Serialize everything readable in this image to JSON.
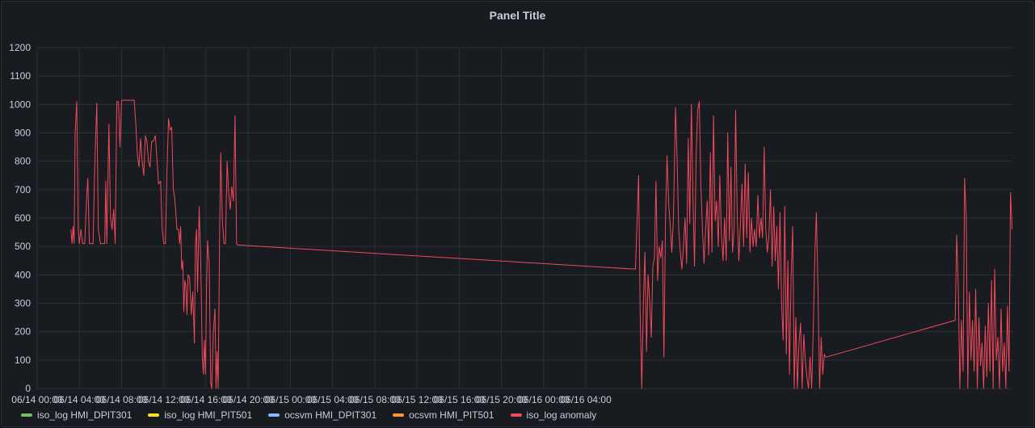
{
  "panel": {
    "title": "Panel Title"
  },
  "chart_data": {
    "type": "line",
    "title": "Panel Title",
    "ylim": [
      0,
      1200
    ],
    "y_ticks": [
      0,
      100,
      200,
      300,
      400,
      500,
      600,
      700,
      800,
      900,
      1000,
      1100,
      1200
    ],
    "x_ticks": [
      "06/14 00:00",
      "06/14 04:00",
      "06/14 08:00",
      "06/14 12:00",
      "06/14 16:00",
      "06/14 20:00",
      "06/15 00:00",
      "06/15 04:00",
      "06/15 08:00",
      "06/15 12:00",
      "06/15 16:00",
      "06/15 20:00",
      "06/16 00:00",
      "06/16 04:00"
    ],
    "x_unit": "hours since 06/14 00:00",
    "grid": true,
    "legend_position": "bottom-left",
    "series": [
      {
        "name": "iso_log HMI_DPIT301",
        "color": "#73bf69",
        "points": []
      },
      {
        "name": "iso_log HMI_PIT501",
        "color": "#fade2a",
        "points": []
      },
      {
        "name": "ocsvm HMI_DPIT301",
        "color": "#8ab8ff",
        "points": []
      },
      {
        "name": "ocsvm HMI_PIT501",
        "color": "#ff9830",
        "points": []
      },
      {
        "name": "iso_log anomaly",
        "color": "#f2495c",
        "points": [
          [
            3.2,
            560
          ],
          [
            3.3,
            510
          ],
          [
            3.4,
            570
          ],
          [
            3.5,
            510
          ],
          [
            3.6,
            900
          ],
          [
            3.75,
            1010
          ],
          [
            3.9,
            560
          ],
          [
            4.0,
            510
          ],
          [
            4.15,
            560
          ],
          [
            4.3,
            510
          ],
          [
            4.5,
            510
          ],
          [
            4.7,
            680
          ],
          [
            4.8,
            740
          ],
          [
            4.95,
            510
          ],
          [
            5.1,
            510
          ],
          [
            5.3,
            510
          ],
          [
            5.45,
            780
          ],
          [
            5.65,
            1005
          ],
          [
            5.8,
            560
          ],
          [
            6.0,
            510
          ],
          [
            6.2,
            510
          ],
          [
            6.4,
            510
          ],
          [
            6.5,
            730
          ],
          [
            6.6,
            510
          ],
          [
            6.8,
            930
          ],
          [
            6.95,
            600
          ],
          [
            7.1,
            560
          ],
          [
            7.25,
            630
          ],
          [
            7.4,
            510
          ],
          [
            7.55,
            1010
          ],
          [
            7.7,
            1010
          ],
          [
            7.85,
            850
          ],
          [
            8.0,
            1015
          ],
          [
            9.0,
            1015
          ],
          [
            9.2,
            1015
          ],
          [
            9.35,
            930
          ],
          [
            9.5,
            820
          ],
          [
            9.65,
            780
          ],
          [
            9.8,
            880
          ],
          [
            9.95,
            800
          ],
          [
            10.1,
            750
          ],
          [
            10.25,
            890
          ],
          [
            10.4,
            870
          ],
          [
            10.55,
            800
          ],
          [
            10.7,
            780
          ],
          [
            10.85,
            870
          ],
          [
            11.0,
            870
          ],
          [
            11.2,
            890
          ],
          [
            11.35,
            810
          ],
          [
            11.5,
            720
          ],
          [
            11.7,
            730
          ],
          [
            11.85,
            560
          ],
          [
            12.0,
            510
          ],
          [
            12.15,
            510
          ],
          [
            12.3,
            760
          ],
          [
            12.45,
            950
          ],
          [
            12.6,
            910
          ],
          [
            12.75,
            920
          ],
          [
            12.9,
            700
          ],
          [
            13.0,
            680
          ],
          [
            13.1,
            640
          ],
          [
            13.25,
            560
          ],
          [
            13.4,
            560
          ],
          [
            13.5,
            510
          ],
          [
            13.6,
            570
          ],
          [
            13.7,
            420
          ],
          [
            13.8,
            450
          ],
          [
            13.9,
            270
          ],
          [
            14.0,
            380
          ],
          [
            14.1,
            360
          ],
          [
            14.2,
            260
          ],
          [
            14.3,
            400
          ],
          [
            14.45,
            390
          ],
          [
            14.6,
            260
          ],
          [
            14.75,
            340
          ],
          [
            14.9,
            160
          ],
          [
            15.0,
            510
          ],
          [
            15.1,
            560
          ],
          [
            15.2,
            340
          ],
          [
            15.35,
            640
          ],
          [
            15.5,
            450
          ],
          [
            15.65,
            110
          ],
          [
            15.75,
            50
          ],
          [
            15.85,
            170
          ],
          [
            15.95,
            50
          ],
          [
            16.05,
            350
          ],
          [
            16.15,
            520
          ],
          [
            16.3,
            440
          ],
          [
            16.45,
            20
          ],
          [
            16.55,
            0
          ],
          [
            16.7,
            200
          ],
          [
            16.85,
            280
          ],
          [
            16.95,
            0
          ],
          [
            17.05,
            130
          ],
          [
            17.15,
            0
          ],
          [
            17.3,
            560
          ],
          [
            17.4,
            830
          ],
          [
            17.55,
            590
          ],
          [
            17.7,
            510
          ],
          [
            17.85,
            510
          ],
          [
            18.0,
            800
          ],
          [
            18.15,
            690
          ],
          [
            18.3,
            630
          ],
          [
            18.45,
            710
          ],
          [
            18.6,
            660
          ],
          [
            18.75,
            960
          ],
          [
            18.9,
            510
          ],
          [
            19.0,
            505
          ],
          [
            56.7,
            420
          ],
          [
            57.0,
            750
          ],
          [
            57.15,
            270
          ],
          [
            57.3,
            0
          ],
          [
            57.45,
            300
          ],
          [
            57.6,
            480
          ],
          [
            57.75,
            130
          ],
          [
            57.9,
            400
          ],
          [
            58.05,
            310
          ],
          [
            58.2,
            180
          ],
          [
            58.35,
            430
          ],
          [
            58.5,
            460
          ],
          [
            58.65,
            730
          ],
          [
            58.8,
            380
          ],
          [
            58.95,
            500
          ],
          [
            59.1,
            460
          ],
          [
            59.25,
            520
          ],
          [
            59.4,
            110
          ],
          [
            59.55,
            600
          ],
          [
            59.7,
            820
          ],
          [
            59.85,
            650
          ],
          [
            60.0,
            570
          ],
          [
            60.15,
            480
          ],
          [
            60.3,
            600
          ],
          [
            60.5,
            990
          ],
          [
            60.65,
            800
          ],
          [
            60.8,
            560
          ],
          [
            60.95,
            480
          ],
          [
            61.1,
            420
          ],
          [
            61.25,
            500
          ],
          [
            61.4,
            600
          ],
          [
            61.55,
            440
          ],
          [
            61.7,
            880
          ],
          [
            61.85,
            580
          ],
          [
            62.0,
            1000
          ],
          [
            62.15,
            680
          ],
          [
            62.3,
            430
          ],
          [
            62.45,
            820
          ],
          [
            62.6,
            980
          ],
          [
            62.75,
            1010
          ],
          [
            62.9,
            720
          ],
          [
            63.05,
            560
          ],
          [
            63.2,
            440
          ],
          [
            63.35,
            560
          ],
          [
            63.5,
            660
          ],
          [
            63.65,
            470
          ],
          [
            63.8,
            830
          ],
          [
            63.95,
            480
          ],
          [
            64.1,
            960
          ],
          [
            64.25,
            590
          ],
          [
            64.4,
            660
          ],
          [
            64.55,
            500
          ],
          [
            64.7,
            750
          ],
          [
            64.85,
            540
          ],
          [
            65.0,
            450
          ],
          [
            65.15,
            600
          ],
          [
            65.3,
            450
          ],
          [
            65.45,
            900
          ],
          [
            65.6,
            520
          ],
          [
            65.75,
            780
          ],
          [
            65.9,
            480
          ],
          [
            66.05,
            560
          ],
          [
            66.2,
            980
          ],
          [
            66.35,
            600
          ],
          [
            66.5,
            450
          ],
          [
            66.65,
            580
          ],
          [
            66.8,
            720
          ],
          [
            66.95,
            500
          ],
          [
            67.1,
            790
          ],
          [
            67.25,
            530
          ],
          [
            67.4,
            760
          ],
          [
            67.55,
            480
          ],
          [
            67.7,
            600
          ],
          [
            67.85,
            500
          ],
          [
            68.0,
            560
          ],
          [
            68.15,
            500
          ],
          [
            68.3,
            680
          ],
          [
            68.45,
            530
          ],
          [
            68.6,
            600
          ],
          [
            68.75,
            530
          ],
          [
            68.9,
            850
          ],
          [
            69.05,
            560
          ],
          [
            69.2,
            480
          ],
          [
            69.35,
            540
          ],
          [
            69.5,
            700
          ],
          [
            69.65,
            430
          ],
          [
            69.8,
            640
          ],
          [
            69.95,
            450
          ],
          [
            70.1,
            570
          ],
          [
            70.25,
            350
          ],
          [
            70.4,
            620
          ],
          [
            70.55,
            300
          ],
          [
            70.7,
            170
          ],
          [
            70.85,
            640
          ],
          [
            71.0,
            120
          ],
          [
            71.15,
            450
          ],
          [
            71.3,
            50
          ],
          [
            71.45,
            390
          ],
          [
            71.6,
            570
          ],
          [
            71.75,
            0
          ],
          [
            71.9,
            250
          ],
          [
            72.05,
            0
          ],
          [
            72.2,
            160
          ],
          [
            72.35,
            230
          ],
          [
            72.5,
            0
          ],
          [
            72.65,
            190
          ],
          [
            72.8,
            100
          ],
          [
            72.95,
            40
          ],
          [
            73.1,
            0
          ],
          [
            73.25,
            110
          ],
          [
            73.4,
            0
          ],
          [
            73.55,
            200
          ],
          [
            73.7,
            470
          ],
          [
            73.85,
            620
          ],
          [
            74.0,
            350
          ],
          [
            74.15,
            0
          ],
          [
            74.3,
            180
          ],
          [
            74.45,
            50
          ],
          [
            74.6,
            120
          ],
          [
            74.75,
            110
          ],
          [
            87.0,
            240
          ],
          [
            87.15,
            540
          ],
          [
            87.3,
            350
          ],
          [
            87.45,
            0
          ],
          [
            87.6,
            240
          ],
          [
            87.75,
            60
          ],
          [
            87.9,
            740
          ],
          [
            88.05,
            600
          ],
          [
            88.2,
            0
          ],
          [
            88.35,
            340
          ],
          [
            88.5,
            100
          ],
          [
            88.65,
            240
          ],
          [
            88.8,
            60
          ],
          [
            88.95,
            350
          ],
          [
            89.1,
            0
          ],
          [
            89.25,
            250
          ],
          [
            89.4,
            80
          ],
          [
            89.55,
            160
          ],
          [
            89.7,
            0
          ],
          [
            89.85,
            220
          ],
          [
            90.0,
            40
          ],
          [
            90.15,
            300
          ],
          [
            90.3,
            60
          ],
          [
            90.45,
            380
          ],
          [
            90.6,
            0
          ],
          [
            90.75,
            420
          ],
          [
            90.9,
            100
          ],
          [
            91.05,
            180
          ],
          [
            91.2,
            0
          ],
          [
            91.35,
            280
          ],
          [
            91.5,
            60
          ],
          [
            91.65,
            160
          ],
          [
            91.8,
            0
          ],
          [
            91.95,
            290
          ],
          [
            92.1,
            60
          ],
          [
            92.25,
            690
          ],
          [
            92.4,
            560
          ]
        ]
      }
    ]
  },
  "legend": {
    "items": [
      {
        "label": "iso_log HMI_DPIT301",
        "color": "#73bf69"
      },
      {
        "label": "iso_log HMI_PIT501",
        "color": "#fade2a"
      },
      {
        "label": "ocsvm HMI_DPIT301",
        "color": "#8ab8ff"
      },
      {
        "label": "ocsvm HMI_PIT501",
        "color": "#ff9830"
      },
      {
        "label": "iso_log anomaly",
        "color": "#f2495c"
      }
    ]
  }
}
